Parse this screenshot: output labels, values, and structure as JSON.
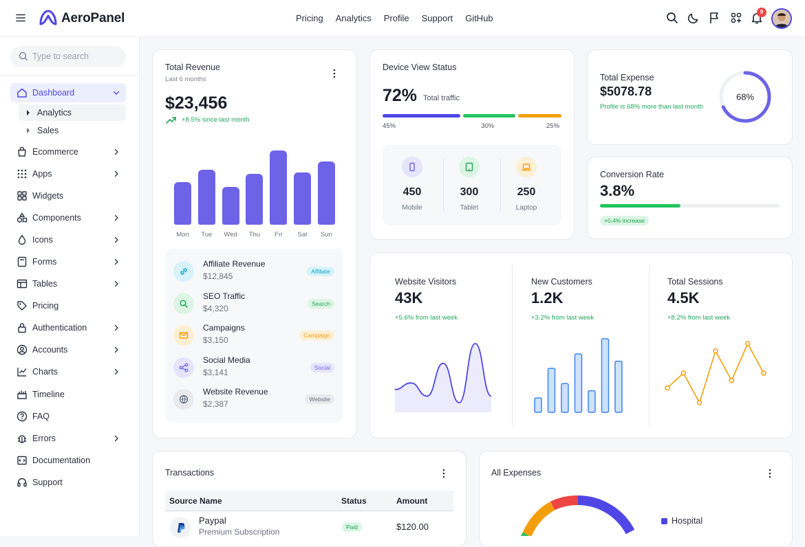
{
  "header": {
    "brand": "AeroPanel",
    "nav": [
      "Pricing",
      "Analytics",
      "Profile",
      "Support",
      "GitHub"
    ],
    "notification_count": "9",
    "icons": [
      "menu-icon",
      "logo-icon",
      "search-icon",
      "moon-icon",
      "flag-icon",
      "apps-icon",
      "bell-icon"
    ]
  },
  "sidebar": {
    "search_placeholder": "Type to search",
    "items": [
      {
        "label": "Dashboard",
        "icon": "home-icon"
      },
      {
        "label": "Ecommerce",
        "icon": "bag-icon"
      },
      {
        "label": "Apps",
        "icon": "grid-icon"
      },
      {
        "label": "Widgets",
        "icon": "widgets-icon"
      },
      {
        "label": "Components",
        "icon": "shapes-icon"
      },
      {
        "label": "Icons",
        "icon": "drop-icon"
      },
      {
        "label": "Forms",
        "icon": "form-icon"
      },
      {
        "label": "Tables",
        "icon": "table-icon"
      },
      {
        "label": "Pricing",
        "icon": "tag-icon"
      },
      {
        "label": "Authentication",
        "icon": "lock-icon"
      },
      {
        "label": "Accounts",
        "icon": "user-circle-icon"
      },
      {
        "label": "Charts",
        "icon": "chart-icon"
      },
      {
        "label": "Timeline",
        "icon": "timeline-icon"
      },
      {
        "label": "FAQ",
        "icon": "help-icon"
      },
      {
        "label": "Errors",
        "icon": "bug-icon"
      },
      {
        "label": "Documentation",
        "icon": "doc-icon"
      },
      {
        "label": "Support",
        "icon": "headset-icon"
      }
    ],
    "subitems": [
      "Analytics",
      "Sales"
    ]
  },
  "revenue": {
    "title": "Total Revenue",
    "subtitle": "Last 6 months",
    "amount": "$23,456",
    "trend": "+8.5% since last month",
    "chart_data": {
      "type": "bar",
      "categories": [
        "Mon",
        "Tue",
        "Wed",
        "Thu",
        "Fri",
        "Sat",
        "Sun"
      ],
      "values": [
        62,
        80,
        55,
        74,
        108,
        76,
        92
      ]
    },
    "sources": [
      {
        "name": "Affiliate Revenue",
        "value": "$12,845",
        "tag": "Affiliate",
        "icon": "link-icon",
        "color": "#0ea5c6"
      },
      {
        "name": "SEO Traffic",
        "value": "$4,320",
        "tag": "Search",
        "icon": "search-icon",
        "color": "#22a55b"
      },
      {
        "name": "Campaigns",
        "value": "$3,150",
        "tag": "Campaign",
        "icon": "mail-icon",
        "color": "#f59e0b"
      },
      {
        "name": "Social Media",
        "value": "$3,141",
        "tag": "Social",
        "icon": "share-icon",
        "color": "#6c63e8"
      },
      {
        "name": "Website Revenue",
        "value": "$2,387",
        "tag": "Website",
        "icon": "globe-icon",
        "color": "#6b7280"
      }
    ]
  },
  "device": {
    "title": "Device View Status",
    "percent": "72%",
    "label": "Total traffic",
    "split": [
      {
        "pct": "45%",
        "value": 45,
        "color": "#4f46e5"
      },
      {
        "pct": "30%",
        "value": 30,
        "color": "#22c55e"
      },
      {
        "pct": "25%",
        "value": 25,
        "color": "#f59e0b"
      }
    ],
    "devices": [
      {
        "value": "450",
        "label": "Mobile",
        "icon": "mobile-icon"
      },
      {
        "value": "300",
        "label": "Tablet",
        "icon": "tablet-icon"
      },
      {
        "value": "250",
        "label": "Laptop",
        "icon": "laptop-icon"
      }
    ]
  },
  "expense": {
    "title": "Total Expense",
    "amount": "$5078.78",
    "note": "Profile is 68% more than last month",
    "gauge": "68%",
    "gauge_value": 68
  },
  "conversion": {
    "title": "Conversion Rate",
    "value": "3.8%",
    "progress": 0.45,
    "tag": "+0.4% increase"
  },
  "stats": [
    {
      "title": "Website Visitors",
      "value": "43K",
      "trend": "+5.6% from last week",
      "color": "#4f46e5",
      "chart_data": {
        "type": "area",
        "values": [
          2,
          3,
          1,
          6,
          0,
          9,
          1
        ]
      }
    },
    {
      "title": "New Customers",
      "value": "1.2K",
      "trend": "+3.2% from last week",
      "color": "#3b82f6",
      "chart_data": {
        "type": "bar",
        "values": [
          18,
          55,
          36,
          73,
          27,
          92,
          64
        ]
      }
    },
    {
      "title": "Total Sessions",
      "value": "4.5K",
      "trend": "+8.2% from last week",
      "color": "#f59e0b",
      "chart_data": {
        "type": "line",
        "values": [
          2,
          4,
          0,
          7,
          3,
          8,
          4
        ]
      }
    }
  ],
  "transactions": {
    "title": "Transactions",
    "columns": [
      "Source Name",
      "Status",
      "Amount"
    ],
    "rows": [
      {
        "name": "Paypal",
        "desc": "Premium Subscription",
        "status": "Paid",
        "amount": "$120.00"
      }
    ]
  },
  "expenses_all": {
    "title": "All Expenses",
    "legend": [
      "Hospital"
    ],
    "chart_data": {
      "type": "pie"
    }
  }
}
